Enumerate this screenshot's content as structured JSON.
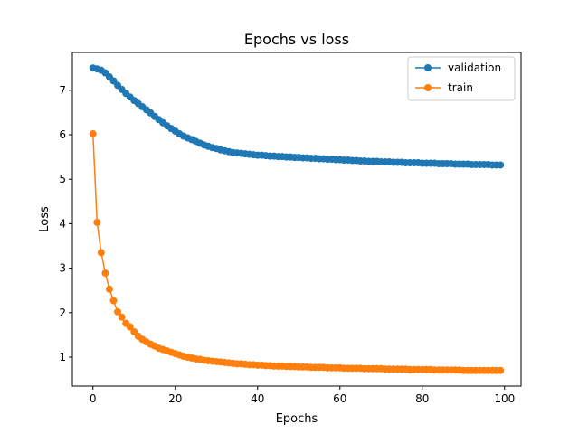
{
  "chart_data": {
    "type": "line",
    "title": "Epochs vs loss",
    "xlabel": "Epochs",
    "ylabel": "Loss",
    "xlim": [
      -5,
      104
    ],
    "ylim": [
      0.35,
      7.85
    ],
    "xticks": [
      0,
      20,
      40,
      60,
      80,
      100
    ],
    "yticks": [
      1,
      2,
      3,
      4,
      5,
      6,
      7
    ],
    "grid": false,
    "legend_position": "top-right",
    "x": [
      0,
      1,
      2,
      3,
      4,
      5,
      6,
      7,
      8,
      9,
      10,
      11,
      12,
      13,
      14,
      15,
      16,
      17,
      18,
      19,
      20,
      21,
      22,
      23,
      24,
      25,
      26,
      27,
      28,
      29,
      30,
      31,
      32,
      33,
      34,
      35,
      36,
      37,
      38,
      39,
      40,
      41,
      42,
      43,
      44,
      45,
      46,
      47,
      48,
      49,
      50,
      51,
      52,
      53,
      54,
      55,
      56,
      57,
      58,
      59,
      60,
      61,
      62,
      63,
      64,
      65,
      66,
      67,
      68,
      69,
      70,
      71,
      72,
      73,
      74,
      75,
      76,
      77,
      78,
      79,
      80,
      81,
      82,
      83,
      84,
      85,
      86,
      87,
      88,
      89,
      90,
      91,
      92,
      93,
      94,
      95,
      96,
      97,
      98,
      99
    ],
    "series": [
      {
        "name": "validation",
        "color": "#1f77b4",
        "values": [
          7.5,
          7.48,
          7.45,
          7.39,
          7.3,
          7.21,
          7.11,
          7.02,
          6.93,
          6.85,
          6.77,
          6.7,
          6.63,
          6.56,
          6.49,
          6.41,
          6.34,
          6.27,
          6.2,
          6.14,
          6.08,
          6.02,
          5.97,
          5.93,
          5.89,
          5.85,
          5.81,
          5.77,
          5.74,
          5.71,
          5.69,
          5.66,
          5.64,
          5.62,
          5.6,
          5.59,
          5.58,
          5.57,
          5.56,
          5.55,
          5.54,
          5.54,
          5.53,
          5.52,
          5.52,
          5.51,
          5.51,
          5.5,
          5.5,
          5.49,
          5.49,
          5.48,
          5.48,
          5.47,
          5.47,
          5.46,
          5.46,
          5.45,
          5.45,
          5.44,
          5.44,
          5.43,
          5.43,
          5.42,
          5.42,
          5.41,
          5.41,
          5.4,
          5.4,
          5.4,
          5.39,
          5.39,
          5.39,
          5.38,
          5.38,
          5.38,
          5.37,
          5.37,
          5.37,
          5.37,
          5.36,
          5.36,
          5.36,
          5.36,
          5.35,
          5.35,
          5.35,
          5.35,
          5.34,
          5.34,
          5.34,
          5.34,
          5.33,
          5.33,
          5.33,
          5.33,
          5.33,
          5.32,
          5.32,
          5.32
        ]
      },
      {
        "name": "train",
        "color": "#ff7f0e",
        "values": [
          6.02,
          4.03,
          3.35,
          2.89,
          2.53,
          2.27,
          2.02,
          1.9,
          1.76,
          1.68,
          1.57,
          1.47,
          1.4,
          1.34,
          1.29,
          1.25,
          1.2,
          1.17,
          1.14,
          1.11,
          1.08,
          1.05,
          1.02,
          1.0,
          0.98,
          0.96,
          0.95,
          0.93,
          0.92,
          0.91,
          0.9,
          0.89,
          0.88,
          0.87,
          0.86,
          0.85,
          0.85,
          0.84,
          0.83,
          0.83,
          0.82,
          0.82,
          0.81,
          0.81,
          0.8,
          0.8,
          0.8,
          0.79,
          0.79,
          0.79,
          0.78,
          0.78,
          0.78,
          0.77,
          0.77,
          0.77,
          0.77,
          0.76,
          0.76,
          0.76,
          0.76,
          0.75,
          0.75,
          0.75,
          0.75,
          0.75,
          0.74,
          0.74,
          0.74,
          0.74,
          0.74,
          0.73,
          0.73,
          0.73,
          0.73,
          0.73,
          0.73,
          0.72,
          0.72,
          0.72,
          0.72,
          0.72,
          0.72,
          0.71,
          0.71,
          0.71,
          0.71,
          0.71,
          0.71,
          0.71,
          0.7,
          0.7,
          0.7,
          0.7,
          0.7,
          0.7,
          0.7,
          0.7,
          0.7,
          0.7
        ]
      }
    ]
  }
}
